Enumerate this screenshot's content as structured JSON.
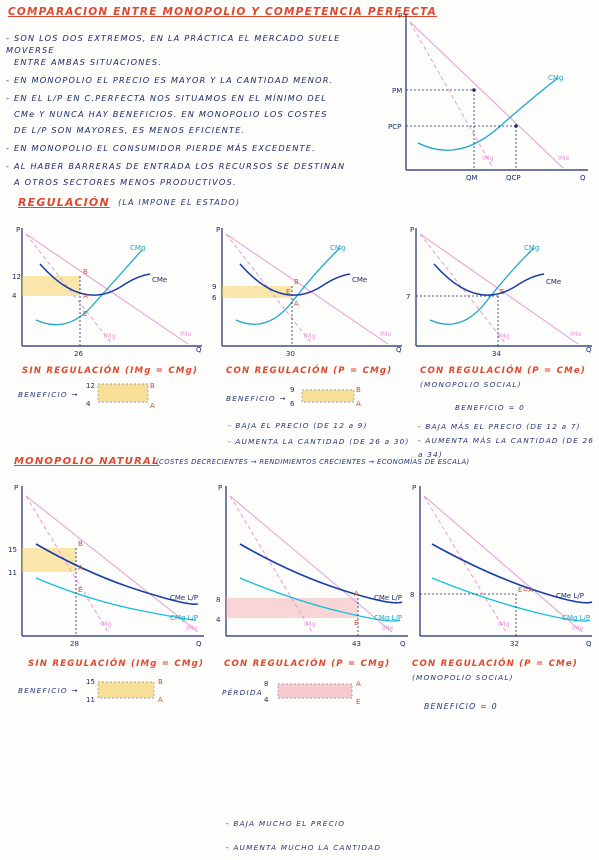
{
  "header": {
    "title": "COMPARACION ENTRE MONOPOLIO Y COMPETENCIA PERFECTA",
    "bullets": [
      "- SON LOS DOS EXTREMOS, EN LA PRÁCTICA EL MERCADO SUELE MOVERSE",
      "ENTRE AMBAS SITUACIONES.",
      "- EN MONOPOLIO EL PRECIO ES MAYOR Y LA CANTIDAD MENOR.",
      "- EN EL L/P EN C.PERFECTA NOS SITUAMOS EN EL MÍNIMO DEL",
      "CMe Y NUNCA HAY BENEFICIOS. EN MONOPOLIO LOS COSTES",
      "DE L/P SON MAYORES, ES MENOS EFICIENTE.",
      "- EN MONOPOLIO EL CONSUMIDOR PIERDE MÁS EXCEDENTE.",
      "- AL HABER BARRERAS DE ENTRADA LOS RECURSOS SE DESTINAN",
      "A OTROS SECTORES MENOS PRODUCTIVOS."
    ]
  },
  "top_graph": {
    "p": "P",
    "q": "Q",
    "pm": "PM",
    "pcp": "PCP",
    "qm": "QM",
    "qcp": "QCP",
    "cmg": "CMg",
    "img": "IMg",
    "ime": "IMe"
  },
  "regulacion": {
    "title": "REGULACIÓN",
    "subtitle": "(LA IMPONE EL ESTADO)",
    "graphs": [
      {
        "p": "P",
        "q": "Q",
        "y_hi": "12",
        "y_lo": "4",
        "x": "26",
        "pt1": "B",
        "pt2": "A",
        "pt3": "E",
        "cmg": "CMg",
        "cme": "CMe",
        "img": "IMg",
        "ime": "IMe"
      },
      {
        "p": "P",
        "q": "Q",
        "y_hi": "9",
        "y_lo": "6",
        "x": "30",
        "pt1": "B",
        "pt2": "A",
        "pt3": "E",
        "cmg": "CMg",
        "cme": "CMe",
        "img": "IMg",
        "ime": "IMe"
      },
      {
        "p": "P",
        "q": "Q",
        "y_hi": "7",
        "x": "34",
        "pt1": "E",
        "cmg": "CMg",
        "cme": "CMe",
        "img": "IMg",
        "ime": "IMe"
      }
    ],
    "captions": [
      "SIN REGULACIÓN (IMg = CMg)",
      "CON REGULACIÓN (P = CMg)",
      "CON REGULACIÓN (P = CMe)"
    ],
    "caption3_sub": "(MONOPOLIO SOCIAL)",
    "benefit1": {
      "label": "BENEFICIO →",
      "hi": "12",
      "lo": "4",
      "b": "B",
      "a": "A"
    },
    "benefit2": {
      "label": "BENEFICIO →",
      "hi": "9",
      "lo": "6",
      "b": "B",
      "a": "A"
    },
    "benefit3": "BENEFICIO = 0",
    "notes2": [
      "- BAJA EL PRECIO (DE 12 a 9)",
      "- AUMENTA LA CANTIDAD (DE 26 a 30)"
    ],
    "notes3": [
      "- BAJA MÁS EL PRECIO (DE 12 a 7)",
      "- AUMENTA MÁS LA CANTIDAD (DE 26 a 34)"
    ]
  },
  "natural": {
    "title": "MONOPOLIO NATURAL",
    "subtitle": "(COSTES DECRECIENTES → RENDIMIENTOS CRECIENTES → ECONOMÍAS DE ESCALA)",
    "graphs": [
      {
        "p": "P",
        "q": "Q",
        "y_hi": "15",
        "y_lo": "11",
        "x": "28",
        "pt1": "B",
        "pt2": "A",
        "pt3": "E",
        "cme": "CMe L/P",
        "cmg": "CMg L/P",
        "img": "IMg",
        "ime": "IMe"
      },
      {
        "p": "P",
        "q": "Q",
        "y_hi": "8",
        "y_lo": "4",
        "x": "43",
        "pt1": "A",
        "pt2": "E",
        "cme": "CMe L/P",
        "cmg": "CMg L/P",
        "img": "IMg",
        "ime": "IMe"
      },
      {
        "p": "P",
        "q": "Q",
        "y_hi": "8",
        "x": "32",
        "pt1": "E=A",
        "cme": "CMe L/P",
        "cmg": "CMg L/P",
        "img": "IMg",
        "ime": "IMe"
      }
    ],
    "captions": [
      "SIN REGULACIÓN (IMg = CMg)",
      "CON REGULACIÓN (P = CMg)",
      "CON REGULACIÓN (P = CMe)"
    ],
    "caption3_sub": "(MONOPOLIO SOCIAL)",
    "benefit1": {
      "label": "BENEFICIO →",
      "hi": "15",
      "lo": "11",
      "b": "B",
      "a": "A"
    },
    "loss2": {
      "label": "PÉRDIDA",
      "hi": "8",
      "lo": "4",
      "a": "A",
      "e": "E"
    },
    "benefit3": "BENEFICIO = 0",
    "notes2": [
      "- BAJA MUCHO EL PRECIO",
      "- AUMENTA MUCHO LA CANTIDAD"
    ]
  }
}
